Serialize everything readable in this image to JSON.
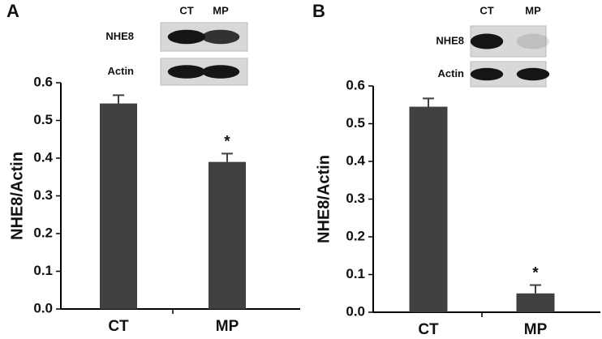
{
  "chart_data": [
    {
      "type": "bar",
      "panel": "A",
      "categories": [
        "CT",
        "MP"
      ],
      "values": [
        0.545,
        0.39
      ],
      "errors": [
        0.022,
        0.022
      ],
      "color": "#404040",
      "ylabel": "NHE8/Actin",
      "ylim": [
        0,
        0.6
      ],
      "yticks": [
        {
          "value": 0,
          "label": "0.0"
        },
        0.1,
        0.2,
        0.3,
        0.4,
        0.5,
        0.6
      ],
      "annotation": "*",
      "blot": {
        "columns": [
          "CT",
          "MP"
        ],
        "rows": [
          "NHE8",
          "Actin"
        ]
      }
    },
    {
      "type": "bar",
      "panel": "B",
      "categories": [
        "CT",
        "MP"
      ],
      "values": [
        0.545,
        0.05
      ],
      "errors": [
        0.022,
        0.022
      ],
      "color": "#404040",
      "ylabel": "NHE8/Actin",
      "ylim": [
        0,
        0.6
      ],
      "yticks": [
        {
          "value": 0,
          "label": "0.0"
        },
        0.1,
        0.2,
        0.3,
        0.4,
        0.5,
        0.6
      ],
      "annotation": "*",
      "blot": {
        "columns": [
          "CT",
          "MP"
        ],
        "rows": [
          "NHE8",
          "Actin"
        ]
      }
    }
  ]
}
